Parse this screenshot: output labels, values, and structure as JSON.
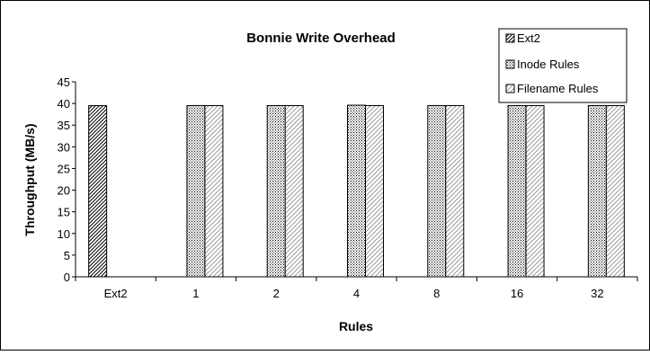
{
  "chart_data": {
    "type": "bar",
    "title": "Bonnie Write Overhead",
    "xlabel": "Rules",
    "ylabel": "Throughput (MB/s)",
    "categories": [
      "Ext2",
      "1",
      "2",
      "4",
      "8",
      "16",
      "32"
    ],
    "ylim": [
      0,
      45
    ],
    "yticks": [
      0,
      5,
      10,
      15,
      20,
      25,
      30,
      35,
      40,
      45
    ],
    "grid": false,
    "legend_position": "top-right",
    "series": [
      {
        "name": "Ext2",
        "pattern": "diagonal-hatch",
        "values": [
          39.5,
          null,
          null,
          null,
          null,
          null,
          null
        ]
      },
      {
        "name": "Inode Rules",
        "pattern": "dots",
        "values": [
          null,
          39.5,
          39.5,
          39.6,
          39.5,
          39.5,
          39.5
        ]
      },
      {
        "name": "Filename Rules",
        "pattern": "light-diagonal",
        "values": [
          null,
          39.5,
          39.5,
          39.5,
          39.5,
          39.5,
          39.5
        ]
      }
    ]
  }
}
